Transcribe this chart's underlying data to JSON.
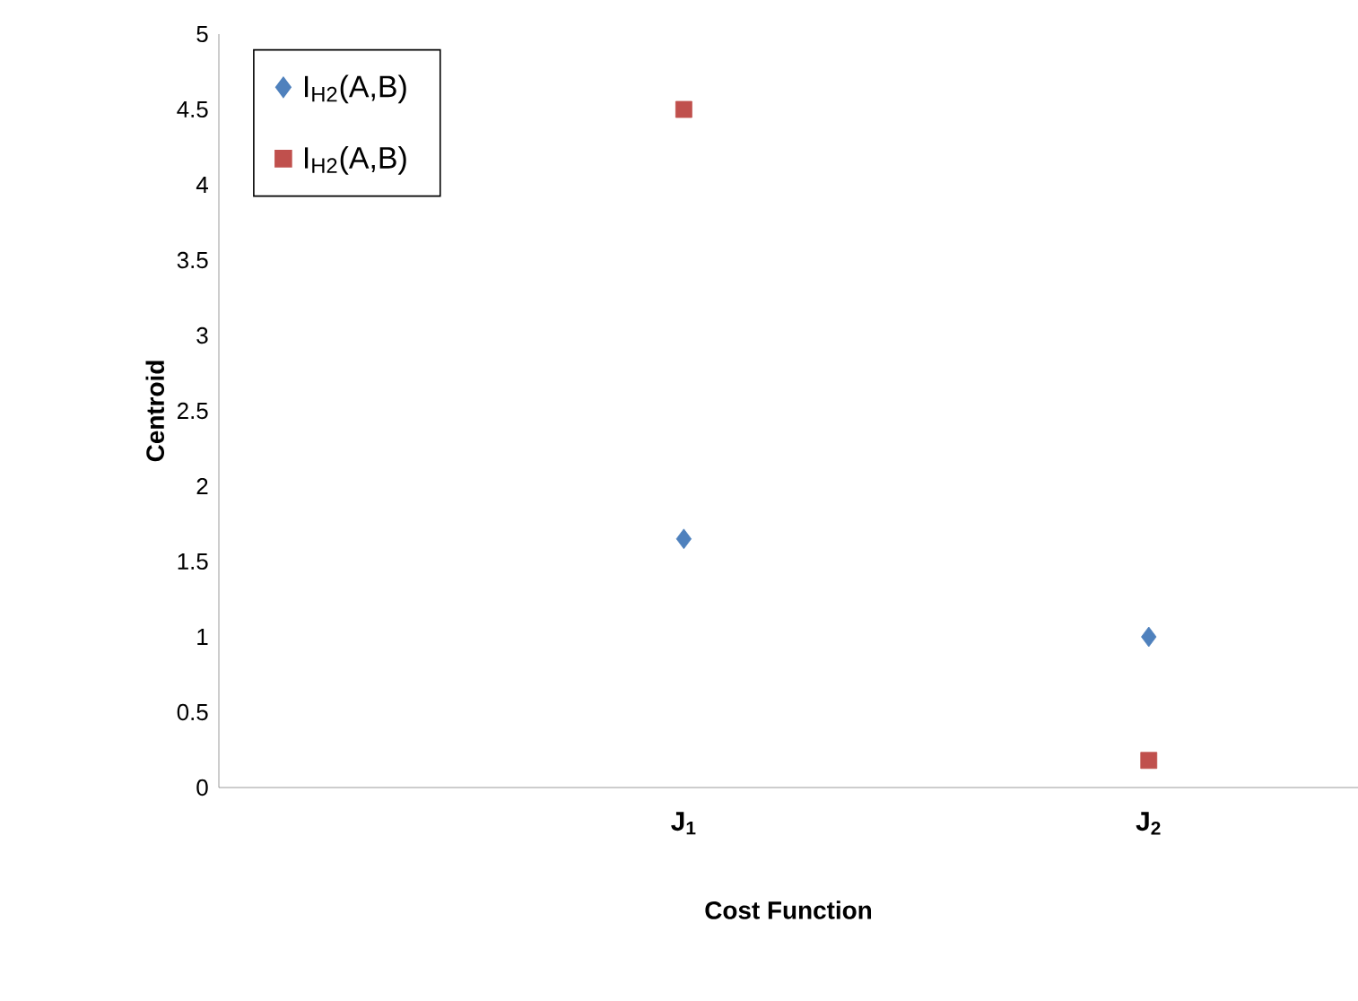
{
  "chart_data": {
    "type": "scatter",
    "xlabel": "Cost Function",
    "ylabel": "Centroid",
    "categories": [
      "J$_{1}$",
      "J$_{2}$"
    ],
    "series": [
      {
        "name": "I$_{H2}$(A,B)",
        "color": "#4f81bd",
        "marker": "diamond",
        "values": [
          1.65,
          1.0
        ]
      },
      {
        "name": "I$_{H2}$(A,B)",
        "color": "#c0504d",
        "marker": "square",
        "values": [
          4.5,
          0.18
        ]
      }
    ],
    "ylim": [
      0,
      5
    ],
    "yticks": [
      0,
      0.5,
      1,
      1.5,
      2,
      2.5,
      3,
      3.5,
      4,
      4.5,
      5
    ],
    "grid": false,
    "legend": "top left"
  }
}
